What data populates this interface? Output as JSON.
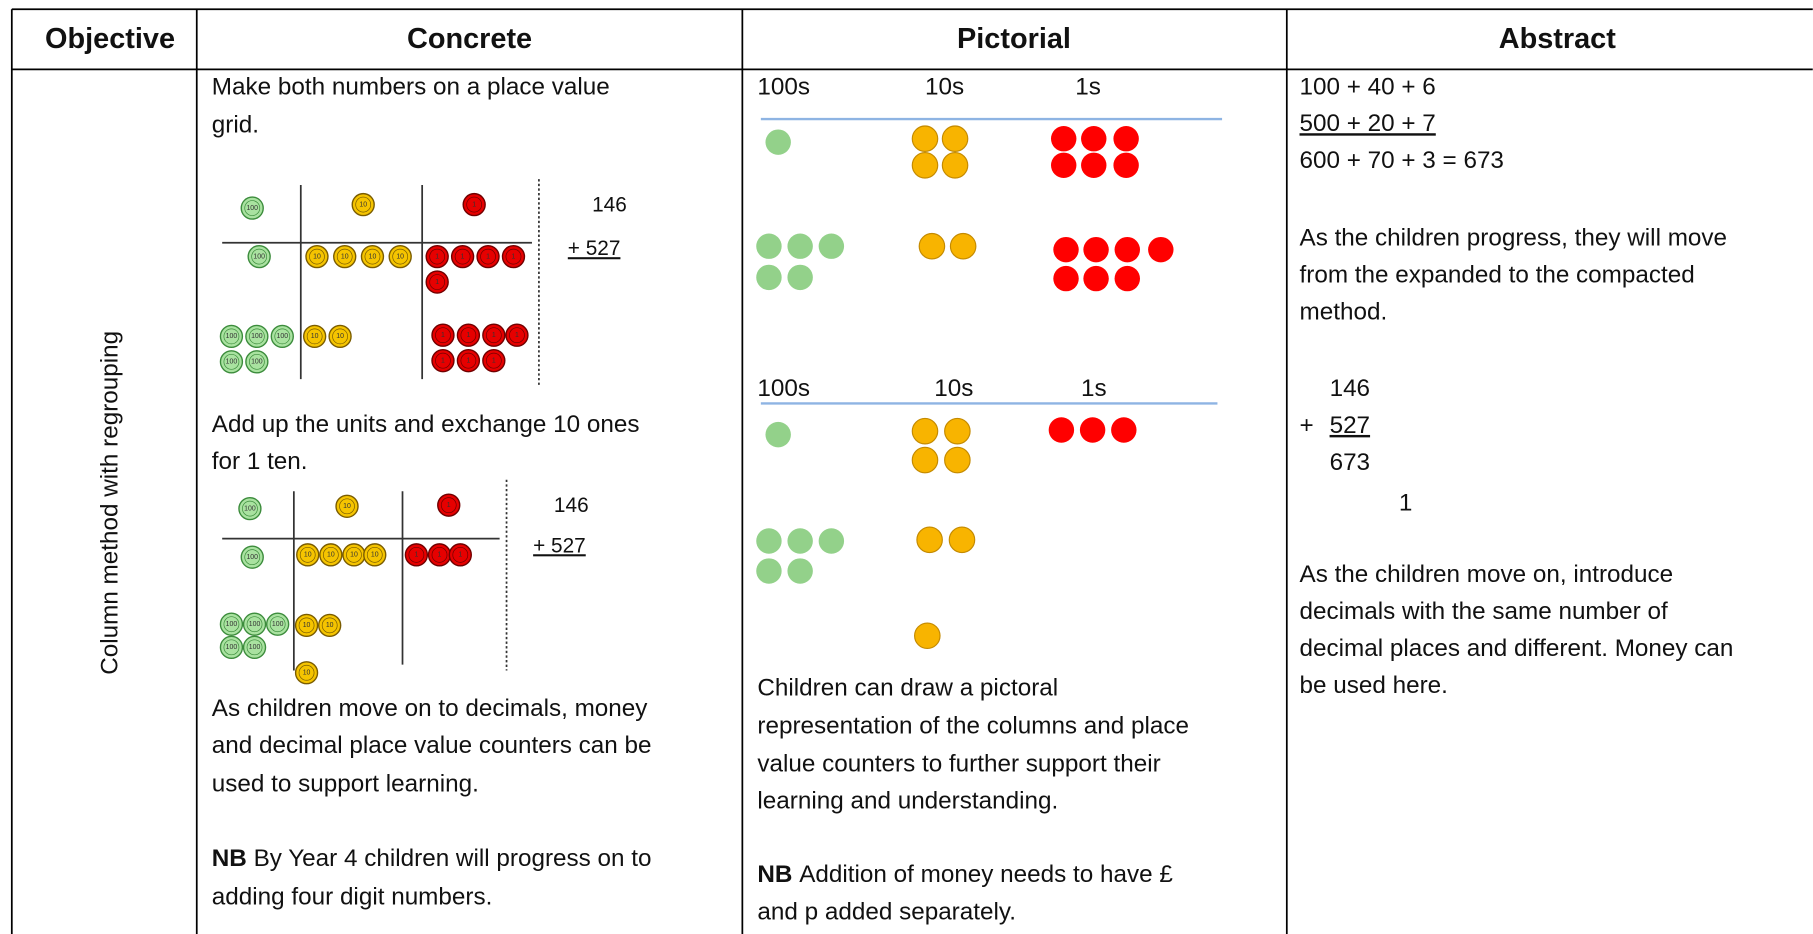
{
  "headers": [
    "Objective",
    "Concrete",
    "Pictorial",
    "Abstract"
  ],
  "objective": "Column method with regrouping",
  "counter_labels": {
    "hundreds": "100",
    "tens": "10",
    "ones": "1"
  },
  "concrete": {
    "intro": [
      "Make both numbers on a place value",
      "grid."
    ],
    "diagram_1": {
      "addend_1": "146",
      "addend_2": "+ 527"
    },
    "step_2": [
      "Add up the units and exchange 10 ones",
      "for 1 ten."
    ],
    "diagram_2": {
      "addend_1": "146",
      "addend_2": "+ 527"
    },
    "note": [
      "As children move on to decimals, money",
      "and decimal place value counters can be",
      "used to support learning."
    ],
    "nb": {
      "label": "NB",
      "lines": [
        "By Year 4 children will progress on to",
        "adding four digit numbers."
      ]
    }
  },
  "pictorial": {
    "columns_1": [
      "100s",
      "10s",
      "1s"
    ],
    "columns_2": [
      "100s",
      "10s",
      "1s"
    ],
    "text": [
      "Children can draw a pictoral",
      "representation of the columns and place",
      "value counters to further support their",
      "learning and understanding."
    ],
    "nb": {
      "label": "NB",
      "lines": [
        "Addition of money needs to have £",
        "and p added separately."
      ]
    }
  },
  "abstract": {
    "expanded": [
      "100 + 40 + 6",
      "500 + 20 + 7",
      "600 + 70 + 3 = 673"
    ],
    "text_1": [
      "As the children progress, they will move",
      "from the expanded to the compacted",
      "method."
    ],
    "column": {
      "addend_1": "146",
      "operator": "+",
      "addend_2": "527",
      "sum": "673",
      "carry": "1"
    },
    "text_2": [
      "As the children move on, introduce",
      "decimals with the same number of",
      "decimal places and different. Money can",
      "be used here."
    ]
  }
}
